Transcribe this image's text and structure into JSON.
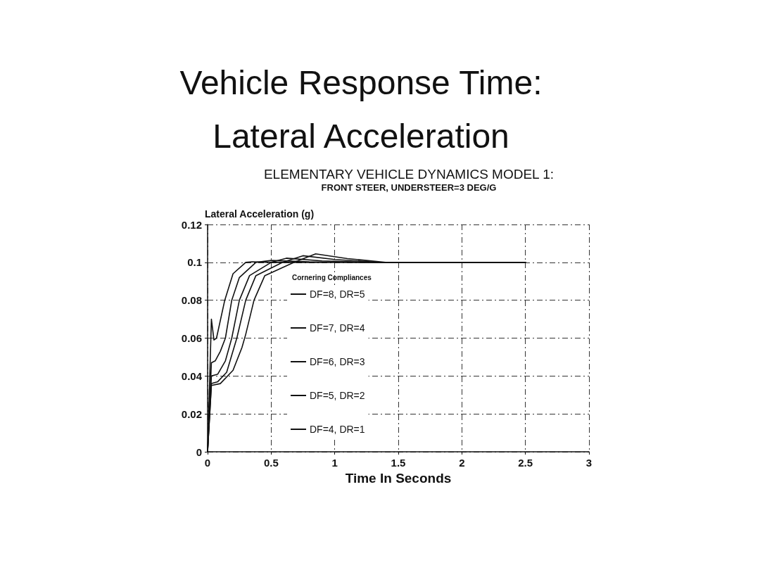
{
  "chart_data": {
    "type": "line",
    "title": "Vehicle Response Time:\nLateral Acceleration",
    "subtitle": "ELEMENTARY VEHICLE DYNAMICS MODEL 1:",
    "annotations": [
      "FRONT STEER, UNDERSTEER=3 DEG/G"
    ],
    "xlabel": "Time In Seconds",
    "ylabel": "Lateral Acceleration (g)",
    "legend_title": "Cornering Compliances",
    "xlim": [
      0,
      3
    ],
    "xticks": [
      0,
      0.5,
      1,
      1.5,
      2,
      2.5,
      3
    ],
    "ylim": [
      0,
      0.12
    ],
    "yticks": [
      0,
      0.02,
      0.04,
      0.06,
      0.08,
      0.1,
      0.12
    ],
    "grid": true,
    "legend": "center",
    "line_style": "solid",
    "marker": "none",
    "series": [
      {
        "name": "DF=8, DR=5",
        "color": "#111111",
        "x": [
          0,
          0.03,
          0.05,
          0.07,
          0.135,
          0.2,
          0.3,
          0.35,
          0.5,
          2.5
        ],
        "values": [
          0,
          0.07,
          0.059,
          0.06,
          0.08,
          0.094,
          0.1,
          0.1003,
          0.1,
          0.1
        ]
      },
      {
        "name": "DF=7, DR=4",
        "color": "#111111",
        "x": [
          0,
          0.03,
          0.06,
          0.1,
          0.14,
          0.19,
          0.25,
          0.38,
          0.5,
          0.8,
          1.2,
          2.5
        ],
        "values": [
          0,
          0.047,
          0.048,
          0.053,
          0.06,
          0.08,
          0.092,
          0.1,
          0.101,
          0.1003,
          0.1,
          0.1
        ]
      },
      {
        "name": "DF=6, DR=3",
        "color": "#111111",
        "x": [
          0,
          0.03,
          0.08,
          0.14,
          0.19,
          0.25,
          0.33,
          0.5,
          0.62,
          0.9,
          1.3,
          2.5
        ],
        "values": [
          0,
          0.04,
          0.041,
          0.048,
          0.06,
          0.08,
          0.093,
          0.1,
          0.1022,
          0.1008,
          0.1,
          0.1
        ]
      },
      {
        "name": "DF=5, DR=2",
        "color": "#111111",
        "x": [
          0,
          0.03,
          0.08,
          0.15,
          0.23,
          0.3,
          0.38,
          0.59,
          0.75,
          1.0,
          1.35,
          2.5
        ],
        "values": [
          0,
          0.036,
          0.037,
          0.042,
          0.06,
          0.08,
          0.093,
          0.1,
          0.1035,
          0.1015,
          0.1,
          0.1
        ]
      },
      {
        "name": "DF=4, DR=1",
        "color": "#111111",
        "x": [
          0,
          0.03,
          0.1,
          0.2,
          0.27,
          0.3,
          0.365,
          0.45,
          0.68,
          0.85,
          1.1,
          1.4,
          2.5
        ],
        "values": [
          0,
          0.035,
          0.036,
          0.043,
          0.055,
          0.062,
          0.08,
          0.093,
          0.1,
          0.1045,
          0.102,
          0.1,
          0.1
        ]
      }
    ]
  }
}
